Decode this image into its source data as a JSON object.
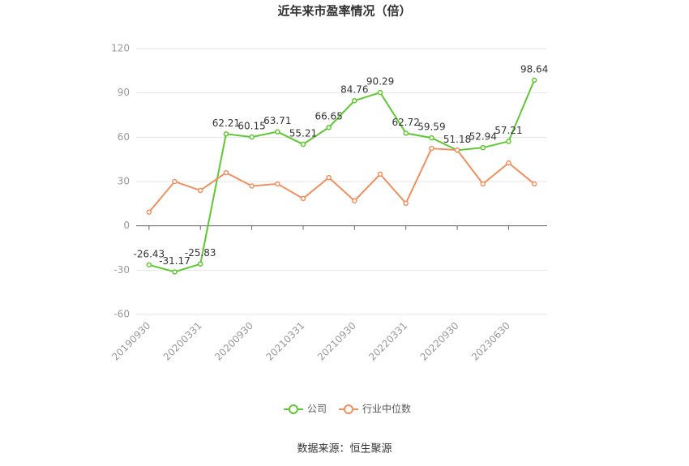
{
  "chart_data": {
    "type": "line",
    "title": "近年来市盈率情况（倍）",
    "categories": [
      "20190930",
      null,
      "20200331",
      null,
      "20200930",
      null,
      "20210331",
      null,
      "20210930",
      null,
      "20220331",
      null,
      "20220930",
      null,
      "20230630",
      null
    ],
    "series": [
      {
        "name": "公司",
        "color": "#5ec832",
        "values": [
          -26.43,
          -31.17,
          -25.83,
          62.21,
          60.15,
          63.71,
          55.21,
          66.65,
          84.76,
          90.29,
          62.72,
          59.59,
          51.18,
          52.94,
          57.21,
          98.64
        ]
      },
      {
        "name": "行业中位数",
        "color": "#f09060",
        "values": [
          9.3,
          30,
          24,
          36,
          27,
          28.4,
          18.5,
          32.7,
          17,
          35,
          15.3,
          52.4,
          51.3,
          28.4,
          42.6,
          28.4
        ]
      }
    ],
    "ylim": [
      -60,
      120
    ],
    "yticks": [
      -60,
      -30,
      0,
      30,
      60,
      90,
      120
    ],
    "grid": true,
    "source": "数据来源：恒生聚源"
  }
}
